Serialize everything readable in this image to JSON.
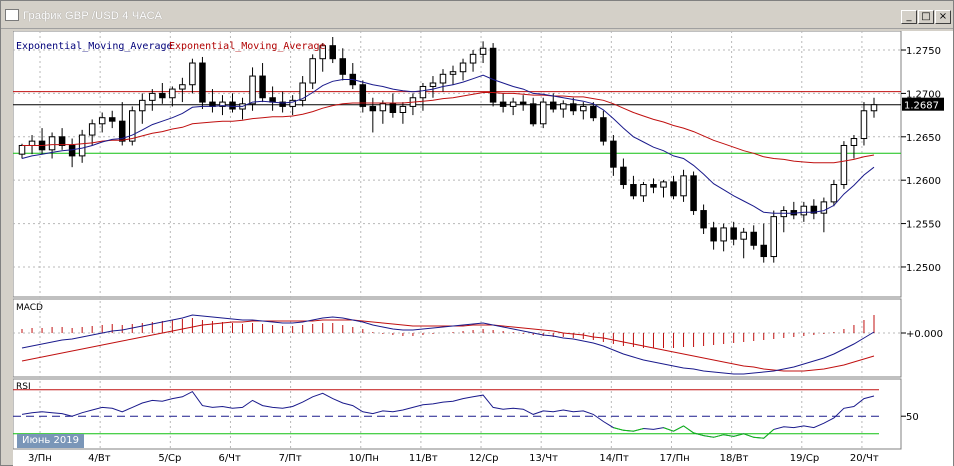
{
  "window": {
    "title": "График GBP /USD  4 ЧАСА",
    "buttons": {
      "minimize": "_",
      "maximize": "□",
      "close": "×"
    }
  },
  "legend": {
    "ema1": "Exponential_Moving_Average",
    "ema2": "Exponential_Moving_Average"
  },
  "panes": {
    "macd": "MACD",
    "rsi": "RSI"
  },
  "date_tag": "Июнь 2019",
  "current_price": "1.2687",
  "macd_zero_label": "+0.000",
  "rsi_mid_label": "50",
  "colors": {
    "bullish": "#ffffff",
    "bearish": "#000000",
    "ema_fast": "#1a1a8c",
    "ema_slow": "#c01010",
    "resistance": "#c01010",
    "support": "#10c010",
    "current": "#000000",
    "grid": "#b8b8b8"
  },
  "chart_data": [
    {
      "type": "candlestick",
      "title": "",
      "ylim": [
        1.247,
        1.2765
      ],
      "y_ticks": [
        "1.2750",
        "1.2700",
        "1.2650",
        "1.2600",
        "1.2550",
        "1.2500"
      ],
      "x_labels": [
        "3/Пн",
        "4/Вт",
        "5/Ср",
        "6/Чт",
        "7/Пт",
        "10/Пн",
        "11/Вт",
        "12/Ср",
        "13/Чт",
        "14/Пт",
        "17/Пн",
        "18/Вт",
        "19/Ср",
        "20/Чт"
      ],
      "horizontal_lines": {
        "resistance": 1.2702,
        "support": 1.2631,
        "current": 1.2687
      },
      "candles": [
        [
          1.263,
          1.2642,
          1.2625,
          1.264
        ],
        [
          1.264,
          1.2652,
          1.263,
          1.2645
        ],
        [
          1.2645,
          1.266,
          1.263,
          1.2635
        ],
        [
          1.2635,
          1.2655,
          1.2625,
          1.265
        ],
        [
          1.265,
          1.266,
          1.2635,
          1.264
        ],
        [
          1.264,
          1.2648,
          1.2615,
          1.2628
        ],
        [
          1.2628,
          1.2658,
          1.262,
          1.2652
        ],
        [
          1.2652,
          1.267,
          1.264,
          1.2665
        ],
        [
          1.2665,
          1.2678,
          1.2655,
          1.2672
        ],
        [
          1.2672,
          1.268,
          1.266,
          1.2668
        ],
        [
          1.2668,
          1.269,
          1.264,
          1.2645
        ],
        [
          1.2645,
          1.2685,
          1.264,
          1.268
        ],
        [
          1.268,
          1.27,
          1.2665,
          1.2692
        ],
        [
          1.2692,
          1.2705,
          1.268,
          1.27
        ],
        [
          1.27,
          1.2712,
          1.2688,
          1.2695
        ],
        [
          1.2695,
          1.2708,
          1.2685,
          1.2705
        ],
        [
          1.2705,
          1.2718,
          1.269,
          1.271
        ],
        [
          1.271,
          1.274,
          1.27,
          1.2735
        ],
        [
          1.2735,
          1.2742,
          1.2682,
          1.269
        ],
        [
          1.269,
          1.2705,
          1.2678,
          1.2685
        ],
        [
          1.2685,
          1.2698,
          1.2675,
          1.269
        ],
        [
          1.269,
          1.27,
          1.2678,
          1.2682
        ],
        [
          1.2682,
          1.2695,
          1.267,
          1.2688
        ],
        [
          1.2688,
          1.273,
          1.268,
          1.272
        ],
        [
          1.272,
          1.2735,
          1.269,
          1.2695
        ],
        [
          1.2695,
          1.2708,
          1.268,
          1.269
        ],
        [
          1.269,
          1.2702,
          1.2678,
          1.2685
        ],
        [
          1.2685,
          1.2698,
          1.2675,
          1.2692
        ],
        [
          1.2692,
          1.272,
          1.2685,
          1.2712
        ],
        [
          1.2712,
          1.2745,
          1.2705,
          1.274
        ],
        [
          1.274,
          1.2758,
          1.2725,
          1.2755
        ],
        [
          1.2755,
          1.2765,
          1.2735,
          1.274
        ],
        [
          1.274,
          1.2752,
          1.2715,
          1.2722
        ],
        [
          1.2722,
          1.2735,
          1.2705,
          1.271
        ],
        [
          1.271,
          1.2715,
          1.2678,
          1.2685
        ],
        [
          1.2685,
          1.2695,
          1.2655,
          1.268
        ],
        [
          1.268,
          1.2692,
          1.2665,
          1.2688
        ],
        [
          1.2688,
          1.27,
          1.2672,
          1.2678
        ],
        [
          1.2678,
          1.269,
          1.2665,
          1.2685
        ],
        [
          1.2685,
          1.27,
          1.2675,
          1.2695
        ],
        [
          1.2695,
          1.2712,
          1.268,
          1.2708
        ],
        [
          1.2708,
          1.272,
          1.2695,
          1.2712
        ],
        [
          1.2712,
          1.2728,
          1.2702,
          1.2722
        ],
        [
          1.2722,
          1.2732,
          1.271,
          1.2725
        ],
        [
          1.2725,
          1.274,
          1.2715,
          1.2735
        ],
        [
          1.2735,
          1.275,
          1.2725,
          1.2745
        ],
        [
          1.2745,
          1.276,
          1.2735,
          1.2752
        ],
        [
          1.2752,
          1.2758,
          1.2685,
          1.269
        ],
        [
          1.269,
          1.27,
          1.2678,
          1.2685
        ],
        [
          1.2685,
          1.2695,
          1.2675,
          1.269
        ],
        [
          1.269,
          1.2698,
          1.268,
          1.2688
        ],
        [
          1.2688,
          1.2695,
          1.2662,
          1.2665
        ],
        [
          1.2665,
          1.2695,
          1.266,
          1.269
        ],
        [
          1.269,
          1.27,
          1.2678,
          1.2682
        ],
        [
          1.2682,
          1.2692,
          1.2672,
          1.2688
        ],
        [
          1.2688,
          1.2695,
          1.2675,
          1.268
        ],
        [
          1.268,
          1.269,
          1.267,
          1.2685
        ],
        [
          1.2685,
          1.269,
          1.2668,
          1.2672
        ],
        [
          1.2672,
          1.268,
          1.264,
          1.2645
        ],
        [
          1.2645,
          1.2652,
          1.2605,
          1.2615
        ],
        [
          1.2615,
          1.2625,
          1.259,
          1.2595
        ],
        [
          1.2595,
          1.2605,
          1.2578,
          1.2582
        ],
        [
          1.2582,
          1.2598,
          1.2575,
          1.2595
        ],
        [
          1.2595,
          1.2602,
          1.2585,
          1.2592
        ],
        [
          1.2592,
          1.26,
          1.258,
          1.2598
        ],
        [
          1.2598,
          1.2605,
          1.2578,
          1.2582
        ],
        [
          1.2582,
          1.2612,
          1.2575,
          1.2605
        ],
        [
          1.2605,
          1.261,
          1.256,
          1.2565
        ],
        [
          1.2565,
          1.2572,
          1.2538,
          1.2545
        ],
        [
          1.2545,
          1.2552,
          1.252,
          1.253
        ],
        [
          1.253,
          1.255,
          1.2518,
          1.2545
        ],
        [
          1.2545,
          1.2552,
          1.2525,
          1.2532
        ],
        [
          1.2532,
          1.2545,
          1.251,
          1.254
        ],
        [
          1.254,
          1.2548,
          1.252,
          1.2525
        ],
        [
          1.2525,
          1.255,
          1.2505,
          1.2512
        ],
        [
          1.2512,
          1.2565,
          1.2505,
          1.2558
        ],
        [
          1.2558,
          1.257,
          1.254,
          1.2565
        ],
        [
          1.2565,
          1.2575,
          1.2555,
          1.256
        ],
        [
          1.256,
          1.2575,
          1.2552,
          1.257
        ],
        [
          1.257,
          1.2578,
          1.2555,
          1.2562
        ],
        [
          1.2562,
          1.258,
          1.254,
          1.2575
        ],
        [
          1.2575,
          1.26,
          1.257,
          1.2595
        ],
        [
          1.2595,
          1.2645,
          1.259,
          1.264
        ],
        [
          1.264,
          1.2652,
          1.2625,
          1.2648
        ],
        [
          1.2648,
          1.269,
          1.264,
          1.268
        ],
        [
          1.268,
          1.2695,
          1.2672,
          1.2687
        ]
      ],
      "ema_fast": [
        1.2625,
        1.2628,
        1.263,
        1.2632,
        1.2634,
        1.2635,
        1.2637,
        1.264,
        1.2644,
        1.2647,
        1.2648,
        1.2652,
        1.2658,
        1.2664,
        1.2668,
        1.2672,
        1.2677,
        1.2684,
        1.2685,
        1.2685,
        1.2686,
        1.2685,
        1.2685,
        1.269,
        1.2691,
        1.269,
        1.2689,
        1.269,
        1.2694,
        1.2701,
        1.2709,
        1.2714,
        1.2716,
        1.2716,
        1.2713,
        1.271,
        1.2708,
        1.2705,
        1.2703,
        1.2702,
        1.2703,
        1.2705,
        1.2708,
        1.271,
        1.2713,
        1.2717,
        1.2721,
        1.2716,
        1.2712,
        1.2708,
        1.2705,
        1.27,
        1.2699,
        1.2697,
        1.2695,
        1.2693,
        1.2691,
        1.2688,
        1.2681,
        1.2671,
        1.266,
        1.265,
        1.2644,
        1.2638,
        1.2634,
        1.2628,
        1.2625,
        1.2617,
        1.2607,
        1.2596,
        1.2589,
        1.2582,
        1.2576,
        1.257,
        1.2563,
        1.2562,
        1.2562,
        1.2562,
        1.2563,
        1.2563,
        1.2565,
        1.2571,
        1.2584,
        1.2594,
        1.2606,
        1.2615
      ],
      "ema_slow": [
        1.264,
        1.264,
        1.264,
        1.2641,
        1.2641,
        1.2641,
        1.2642,
        1.2643,
        1.2645,
        1.2646,
        1.2646,
        1.2648,
        1.2651,
        1.2654,
        1.2656,
        1.2659,
        1.2661,
        1.2665,
        1.2666,
        1.2667,
        1.2668,
        1.2668,
        1.2669,
        1.2671,
        1.2672,
        1.2673,
        1.2673,
        1.2674,
        1.2676,
        1.2679,
        1.2683,
        1.2686,
        1.2688,
        1.2689,
        1.2689,
        1.2689,
        1.2689,
        1.2689,
        1.2689,
        1.269,
        1.2691,
        1.2692,
        1.2694,
        1.2695,
        1.2697,
        1.2699,
        1.2701,
        1.2701,
        1.27,
        1.27,
        1.2699,
        1.2698,
        1.2698,
        1.2697,
        1.2697,
        1.2696,
        1.2696,
        1.2694,
        1.2692,
        1.2688,
        1.2683,
        1.2678,
        1.2674,
        1.267,
        1.2667,
        1.2663,
        1.266,
        1.2656,
        1.2651,
        1.2646,
        1.2642,
        1.2638,
        1.2634,
        1.2631,
        1.2627,
        1.2625,
        1.2624,
        1.2622,
        1.2621,
        1.262,
        1.262,
        1.262,
        1.2622,
        1.2624,
        1.2627,
        1.2629
      ]
    },
    {
      "type": "bar",
      "title": "MACD",
      "ylim": [
        -0.0042,
        0.0032
      ],
      "histogram": [
        0.0004,
        0.0005,
        0.0005,
        0.0006,
        0.0006,
        0.0005,
        0.0006,
        0.0007,
        0.0008,
        0.0009,
        0.0008,
        0.0009,
        0.001,
        0.0011,
        0.0012,
        0.0013,
        0.0014,
        0.0015,
        0.0013,
        0.0012,
        0.0011,
        0.001,
        0.0009,
        0.001,
        0.0009,
        0.0008,
        0.0007,
        0.0007,
        0.0008,
        0.0009,
        0.001,
        0.001,
        0.0008,
        0.0006,
        0.0004,
        0.0001,
        -0.0001,
        -0.0002,
        -0.0003,
        -0.0003,
        -0.0002,
        -0.0001,
        0.0,
        0.0001,
        0.0002,
        0.0003,
        0.0004,
        0.0003,
        0.0002,
        0.0001,
        -0.0001,
        -0.0002,
        -0.0003,
        -0.0004,
        -0.0004,
        -0.0005,
        -0.0006,
        -0.0007,
        -0.0009,
        -0.0011,
        -0.0013,
        -0.0014,
        -0.0015,
        -0.0015,
        -0.0015,
        -0.0015,
        -0.0014,
        -0.0014,
        -0.0013,
        -0.0012,
        -0.0011,
        -0.001,
        -0.0009,
        -0.0008,
        -0.0007,
        -0.0006,
        -0.0005,
        -0.0004,
        -0.0003,
        -0.0002,
        -0.0001,
        0.0001,
        0.0004,
        0.0008,
        0.0013,
        0.0018
      ],
      "macd_line": [
        -0.0015,
        -0.0013,
        -0.0011,
        -0.0009,
        -0.0007,
        -0.0006,
        -0.0004,
        -0.0002,
        0.0,
        0.0002,
        0.0003,
        0.0005,
        0.0007,
        0.0009,
        0.0011,
        0.0013,
        0.0015,
        0.0018,
        0.0017,
        0.0016,
        0.0015,
        0.0014,
        0.0013,
        0.0013,
        0.0012,
        0.0011,
        0.001,
        0.001,
        0.0011,
        0.0013,
        0.0015,
        0.0016,
        0.0015,
        0.0013,
        0.0011,
        0.0008,
        0.0006,
        0.0004,
        0.0003,
        0.0003,
        0.0004,
        0.0005,
        0.0006,
        0.0007,
        0.0008,
        0.0009,
        0.001,
        0.0008,
        0.0006,
        0.0004,
        0.0002,
        0.0,
        -0.0002,
        -0.0003,
        -0.0005,
        -0.0006,
        -0.0008,
        -0.001,
        -0.0013,
        -0.0017,
        -0.0021,
        -0.0024,
        -0.0027,
        -0.0029,
        -0.0031,
        -0.0033,
        -0.0035,
        -0.0036,
        -0.0038,
        -0.0039,
        -0.004,
        -0.0041,
        -0.0041,
        -0.004,
        -0.0039,
        -0.0038,
        -0.0036,
        -0.0034,
        -0.0031,
        -0.0028,
        -0.0025,
        -0.0021,
        -0.0016,
        -0.0011,
        -0.0005,
        0.0001
      ],
      "signal_line": [
        -0.0028,
        -0.0026,
        -0.0024,
        -0.0022,
        -0.002,
        -0.0018,
        -0.0016,
        -0.0014,
        -0.0012,
        -0.001,
        -0.0008,
        -0.0006,
        -0.0004,
        -0.0002,
        0.0,
        0.0002,
        0.0004,
        0.0006,
        0.0008,
        0.0009,
        0.001,
        0.0011,
        0.0011,
        0.0012,
        0.0012,
        0.0012,
        0.0012,
        0.0012,
        0.0012,
        0.0012,
        0.0013,
        0.0013,
        0.0013,
        0.0013,
        0.0012,
        0.0011,
        0.001,
        0.0009,
        0.0008,
        0.0007,
        0.0007,
        0.0007,
        0.0007,
        0.0007,
        0.0007,
        0.0008,
        0.0008,
        0.0008,
        0.0007,
        0.0006,
        0.0005,
        0.0004,
        0.0003,
        0.0002,
        0.0,
        -0.0001,
        -0.0002,
        -0.0004,
        -0.0005,
        -0.0007,
        -0.0009,
        -0.0011,
        -0.0013,
        -0.0015,
        -0.0017,
        -0.0019,
        -0.0021,
        -0.0023,
        -0.0025,
        -0.0027,
        -0.0029,
        -0.0031,
        -0.0033,
        -0.0034,
        -0.0036,
        -0.0037,
        -0.0038,
        -0.0038,
        -0.0038,
        -0.0037,
        -0.0036,
        -0.0034,
        -0.0032,
        -0.0029,
        -0.0026,
        -0.0023
      ]
    },
    {
      "type": "line",
      "title": "RSI",
      "ylim": [
        15,
        90
      ],
      "levels": {
        "upper": 80,
        "mid": 50,
        "lower": 30
      },
      "rsi": [
        52,
        54,
        55,
        54,
        53,
        50,
        54,
        57,
        60,
        59,
        55,
        60,
        65,
        68,
        67,
        70,
        72,
        78,
        62,
        60,
        61,
        59,
        60,
        68,
        62,
        60,
        59,
        61,
        66,
        72,
        76,
        70,
        65,
        62,
        55,
        53,
        56,
        55,
        57,
        60,
        63,
        64,
        66,
        67,
        70,
        72,
        74,
        60,
        58,
        59,
        58,
        52,
        56,
        55,
        57,
        55,
        56,
        52,
        44,
        37,
        34,
        33,
        36,
        35,
        37,
        33,
        39,
        31,
        28,
        26,
        29,
        27,
        30,
        26,
        25,
        35,
        38,
        37,
        39,
        37,
        42,
        48,
        59,
        61,
        70,
        73
      ]
    }
  ]
}
